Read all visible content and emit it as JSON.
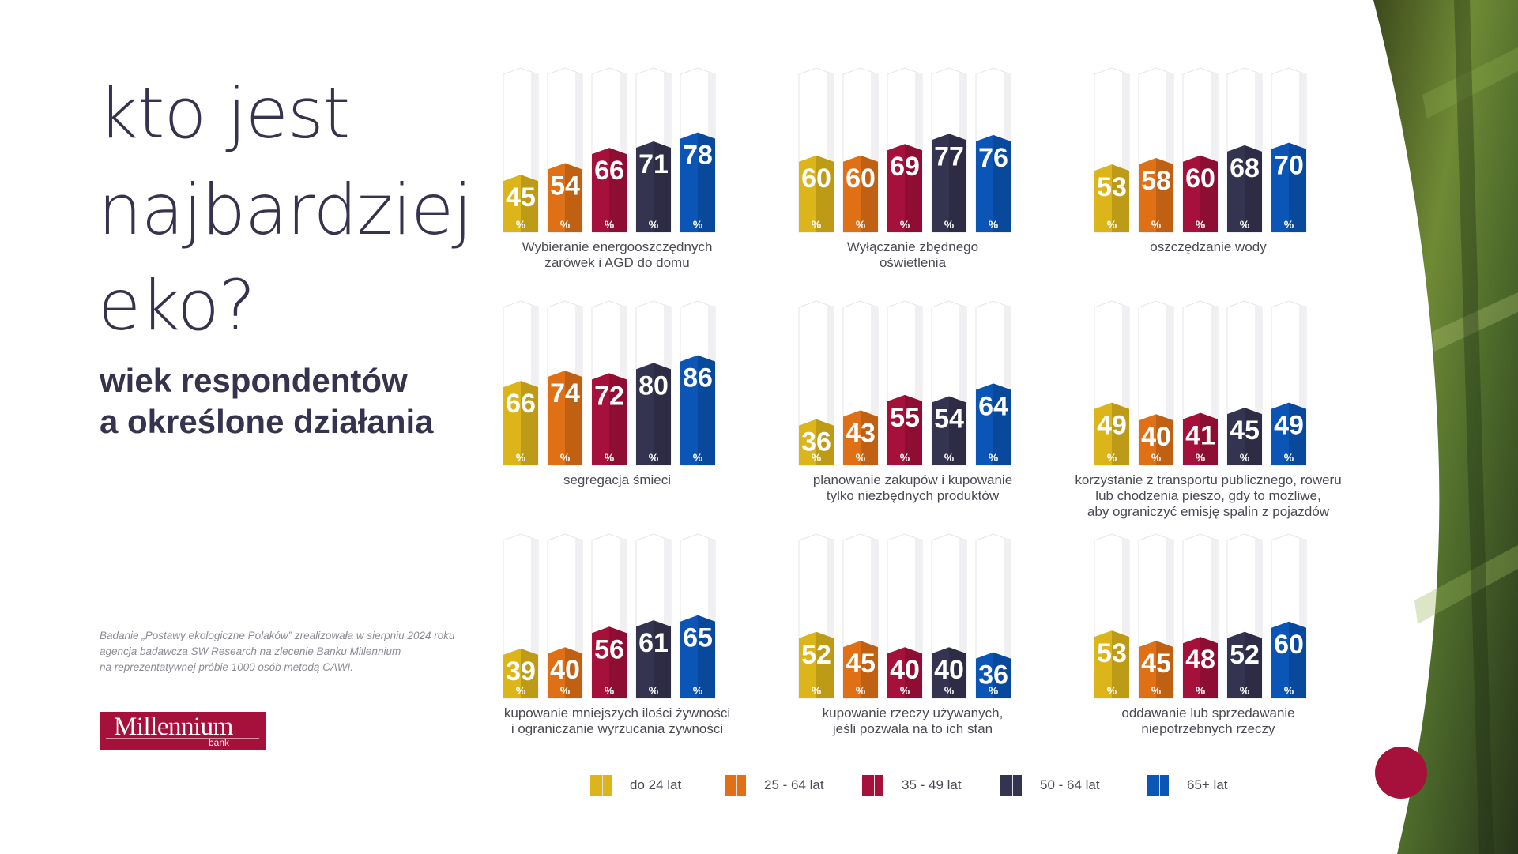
{
  "title": [
    "kto jest",
    "najbardziej",
    "eko?"
  ],
  "subtitle": [
    "wiek respondentów",
    "a określone działania"
  ],
  "note": [
    "Badanie „Postawy ekologiczne Polaków” zrealizowała w sierpniu 2024 roku",
    "agencja badawcza SW Research na zlecenie Banku Millennium",
    "na reprezentatywnej próbie 1000 osób metodą CAWI."
  ],
  "logo": {
    "name": "Millennium",
    "sub": "bank"
  },
  "colors": {
    "do 24 lat": "#dcb51a",
    "25 - 64 lat": "#e07015",
    "35 - 49 lat": "#a5113b",
    "50 - 64 lat": "#353450",
    "65+ lat": "#0a55b5"
  },
  "legend": [
    {
      "label": "do 24 lat",
      "color": "#dcb51a"
    },
    {
      "label": "25 - 64 lat",
      "color": "#e07015"
    },
    {
      "label": "35 - 49 lat",
      "color": "#a5113b"
    },
    {
      "label": "50 - 64 lat",
      "color": "#353450"
    },
    {
      "label": "65+ lat",
      "color": "#0a55b5"
    }
  ],
  "chart_data": [
    {
      "type": "bar",
      "caption": [
        "Wybieranie energooszczędnych",
        "żarówek i AGD do domu"
      ],
      "series": [
        "do 24 lat",
        "25 - 64 lat",
        "35 - 49 lat",
        "50 - 64 lat",
        "65+ lat"
      ],
      "values": [
        45,
        54,
        66,
        71,
        78
      ],
      "unit": "%",
      "ylim": [
        0,
        100
      ]
    },
    {
      "type": "bar",
      "caption": [
        "Wyłączanie zbędnego",
        "oświetlenia"
      ],
      "series": [
        "do 24 lat",
        "25 - 64 lat",
        "35 - 49 lat",
        "50 - 64 lat",
        "65+ lat"
      ],
      "values": [
        60,
        60,
        69,
        77,
        76
      ],
      "unit": "%",
      "ylim": [
        0,
        100
      ]
    },
    {
      "type": "bar",
      "caption": [
        "oszczędzanie wody"
      ],
      "series": [
        "do 24 lat",
        "25 - 64 lat",
        "35 - 49 lat",
        "50 - 64 lat",
        "65+ lat"
      ],
      "values": [
        53,
        58,
        60,
        68,
        70
      ],
      "unit": "%",
      "ylim": [
        0,
        100
      ]
    },
    {
      "type": "bar",
      "caption": [
        "segregacja śmieci"
      ],
      "series": [
        "do 24 lat",
        "25 - 64 lat",
        "35 - 49 lat",
        "50 - 64 lat",
        "65+ lat"
      ],
      "values": [
        66,
        74,
        72,
        80,
        86
      ],
      "unit": "%",
      "ylim": [
        0,
        100
      ]
    },
    {
      "type": "bar",
      "caption": [
        "planowanie zakupów i kupowanie",
        "tylko niezbędnych produktów"
      ],
      "series": [
        "do 24 lat",
        "25 - 64 lat",
        "35 - 49 lat",
        "50 - 64 lat",
        "65+ lat"
      ],
      "values": [
        36,
        43,
        55,
        54,
        64
      ],
      "unit": "%",
      "ylim": [
        0,
        100
      ]
    },
    {
      "type": "bar",
      "caption": [
        "korzystanie z transportu publicznego, roweru",
        "lub chodzenia pieszo, gdy to możliwe,",
        "aby ograniczyć emisję spalin z pojazdów"
      ],
      "series": [
        "do 24 lat",
        "25 - 64 lat",
        "35 - 49 lat",
        "50 - 64 lat",
        "65+ lat"
      ],
      "values": [
        49,
        40,
        41,
        45,
        49
      ],
      "unit": "%",
      "ylim": [
        0,
        100
      ]
    },
    {
      "type": "bar",
      "caption": [
        "kupowanie mniejszych ilości żywności",
        "i ograniczanie wyrzucania żywności"
      ],
      "series": [
        "do 24 lat",
        "25 - 64 lat",
        "35 - 49 lat",
        "50 - 64 lat",
        "65+ lat"
      ],
      "values": [
        39,
        40,
        56,
        61,
        65
      ],
      "unit": "%",
      "ylim": [
        0,
        100
      ]
    },
    {
      "type": "bar",
      "caption": [
        "kupowanie rzeczy używanych,",
        "jeśli pozwala na to ich stan"
      ],
      "series": [
        "do 24 lat",
        "25 - 64 lat",
        "35 - 49 lat",
        "50 - 64 lat",
        "65+ lat"
      ],
      "values": [
        52,
        45,
        40,
        40,
        36
      ],
      "unit": "%",
      "ylim": [
        0,
        100
      ]
    },
    {
      "type": "bar",
      "caption": [
        "oddawanie lub sprzedawanie",
        "niepotrzebnych rzeczy"
      ],
      "series": [
        "do 24 lat",
        "25 - 64 lat",
        "35 - 49 lat",
        "50 - 64 lat",
        "65+ lat"
      ],
      "values": [
        53,
        45,
        48,
        52,
        60
      ],
      "unit": "%",
      "ylim": [
        0,
        100
      ]
    }
  ]
}
